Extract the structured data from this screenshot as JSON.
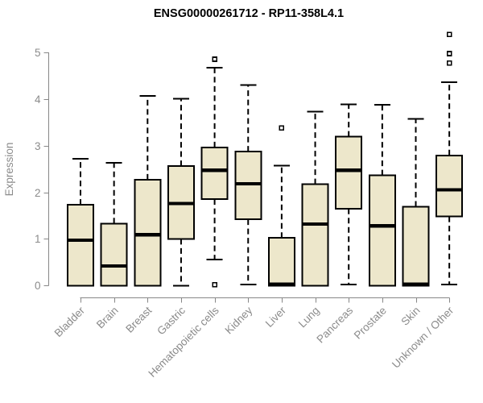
{
  "chart_data": {
    "type": "boxplot",
    "title": "ENSG00000261712 - RP11-358L4.1",
    "ylabel": "Expression",
    "xlabel": "",
    "ylim": [
      0,
      5
    ],
    "yticks": [
      0,
      1,
      2,
      3,
      4,
      5
    ],
    "grid": false,
    "legend": "none",
    "categories": [
      "Bladder",
      "Brain",
      "Breast",
      "Gastric",
      "Hematopoietic cells",
      "Kidney",
      "Liver",
      "Lung",
      "Pancreas",
      "Prostate",
      "Skin",
      "Unknown / Other"
    ],
    "series": [
      {
        "name": "Bladder",
        "whisker_low": 0,
        "q1": 0,
        "median": 0.97,
        "q3": 1.73,
        "whisker_high": 2.72,
        "outliers": []
      },
      {
        "name": "Brain",
        "whisker_low": 0,
        "q1": 0,
        "median": 0.42,
        "q3": 1.33,
        "whisker_high": 2.63,
        "outliers": []
      },
      {
        "name": "Breast",
        "whisker_low": 0,
        "q1": 0,
        "median": 1.09,
        "q3": 2.27,
        "whisker_high": 4.06,
        "outliers": []
      },
      {
        "name": "Gastric",
        "whisker_low": 0,
        "q1": 1.0,
        "median": 1.76,
        "q3": 2.56,
        "whisker_high": 4.0,
        "outliers": []
      },
      {
        "name": "Hematopoietic cells",
        "whisker_low": 0.56,
        "q1": 1.85,
        "median": 2.47,
        "q3": 2.96,
        "whisker_high": 4.67,
        "outliers": [
          4.85,
          0.02
        ]
      },
      {
        "name": "Kidney",
        "whisker_low": 0.02,
        "q1": 1.42,
        "median": 2.18,
        "q3": 2.87,
        "whisker_high": 4.3,
        "outliers": []
      },
      {
        "name": "Liver",
        "whisker_low": 0,
        "q1": 0,
        "median": 0.03,
        "q3": 1.02,
        "whisker_high": 2.57,
        "outliers": [
          3.38
        ]
      },
      {
        "name": "Lung",
        "whisker_low": 0,
        "q1": 0,
        "median": 1.32,
        "q3": 2.17,
        "whisker_high": 3.73,
        "outliers": []
      },
      {
        "name": "Pancreas",
        "whisker_low": 0.02,
        "q1": 1.65,
        "median": 2.47,
        "q3": 3.19,
        "whisker_high": 3.88,
        "outliers": []
      },
      {
        "name": "Prostate",
        "whisker_low": 0,
        "q1": 0,
        "median": 1.28,
        "q3": 2.36,
        "whisker_high": 3.87,
        "outliers": []
      },
      {
        "name": "Skin",
        "whisker_low": 0,
        "q1": 0,
        "median": 0.03,
        "q3": 1.69,
        "whisker_high": 3.57,
        "outliers": []
      },
      {
        "name": "Unknown / Other",
        "whisker_low": 0.02,
        "q1": 1.48,
        "median": 2.05,
        "q3": 2.79,
        "whisker_high": 4.36,
        "outliers": [
          5.38,
          4.97,
          4.77
        ]
      }
    ],
    "colors": {
      "box_fill": "#EDE7CB",
      "box_stroke": "#000000",
      "median": "#000000",
      "whisker": "#000000",
      "outlier_stroke": "#000000",
      "outlier_fill": "#FFFFFF",
      "axis_line": "#878787",
      "axis_text": "#8B8B8B",
      "title": "#000000",
      "background": "#FFFFFF"
    }
  }
}
